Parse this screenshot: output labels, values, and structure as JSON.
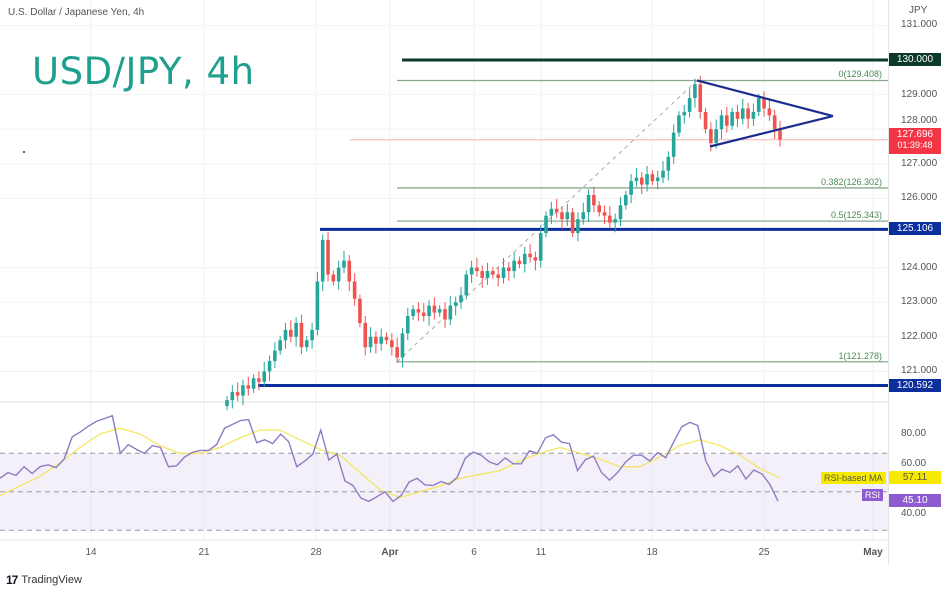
{
  "header": {
    "symbol_title": "U.S. Dollar / Japanese Yen, 4h",
    "overlay_title": "USD/JPY, 4h",
    "currency": "JPY"
  },
  "branding": {
    "logo_mark": "17",
    "logo_text": "TradingView"
  },
  "chart_data": [
    {
      "type": "candlestick",
      "title": "USD/JPY, 4h",
      "ylim": [
        120,
        131.3
      ],
      "y_ticks": [
        "131.000",
        "129.000",
        "128.000",
        "127.000",
        "126.000",
        "124.000",
        "123.000",
        "122.000",
        "121.000"
      ],
      "y_tick_values": [
        131,
        129,
        128,
        127,
        126,
        124,
        123,
        122,
        121
      ],
      "x_ticks": [
        "14",
        "21",
        "28",
        "Apr",
        "6",
        "11",
        "18",
        "25",
        "May"
      ],
      "colors": {
        "up": "#26a69a",
        "down": "#ef5350"
      },
      "first_open": 120.0,
      "closes": [
        120.17,
        120.4,
        120.3,
        120.6,
        120.5,
        120.8,
        120.7,
        121.0,
        121.3,
        121.6,
        121.9,
        122.2,
        122.0,
        122.4,
        121.7,
        121.9,
        122.2,
        123.6,
        124.8,
        123.8,
        123.6,
        124.0,
        124.2,
        123.6,
        123.1,
        122.4,
        121.7,
        122.0,
        121.8,
        122.0,
        121.9,
        121.7,
        121.4,
        122.1,
        122.6,
        122.8,
        122.7,
        122.6,
        122.9,
        122.7,
        122.8,
        122.5,
        122.9,
        123.0,
        123.2,
        123.8,
        124.0,
        123.9,
        123.7,
        123.9,
        123.8,
        123.7,
        124.0,
        123.9,
        124.2,
        124.1,
        124.4,
        124.3,
        124.2,
        125.0,
        125.5,
        125.7,
        125.6,
        125.4,
        125.6,
        125.0,
        125.4,
        125.6,
        126.1,
        125.8,
        125.6,
        125.5,
        125.3,
        125.4,
        125.8,
        126.1,
        126.5,
        126.6,
        126.4,
        126.7,
        126.5,
        126.6,
        126.8,
        127.2,
        127.9,
        128.4,
        128.5,
        128.9,
        129.3,
        128.5,
        128.0,
        127.6,
        128.0,
        128.4,
        128.1,
        128.5,
        128.3,
        128.6,
        128.3,
        128.5,
        128.9,
        128.6,
        128.4,
        128.0,
        127.7
      ],
      "levels": [
        {
          "label": "130.000",
          "value": 130.0,
          "color": "#0b3a2c"
        },
        {
          "label": "125.106",
          "value": 125.106,
          "color": "#0d2f9e"
        },
        {
          "label": "120.592",
          "value": 120.592,
          "color": "#0d2f9e"
        }
      ],
      "fibonacci": [
        {
          "label": "0(129.408)",
          "value": 129.408
        },
        {
          "label": "0.382(126.302)",
          "value": 126.302
        },
        {
          "label": "0.5(125.343)",
          "value": 125.343
        },
        {
          "label": "1(121.278)",
          "value": 121.278
        }
      ],
      "fib_color": "#4a8a52",
      "triangle": {
        "upper_start": 129.408,
        "lower_start": 127.5,
        "apex": 128.38,
        "color": "#1a2d8f"
      },
      "current_price": {
        "value": "127.696",
        "countdown": "01:39:48",
        "price": 127.696,
        "color": "#f23645"
      }
    },
    {
      "type": "line",
      "ylim": [
        20,
        95
      ],
      "y_ticks": [
        "80.00",
        "60.00",
        "40.00"
      ],
      "y_tick_values": [
        80,
        60,
        40
      ],
      "bands": [
        70,
        50,
        30
      ],
      "band_fill": "#7e57c2",
      "series": [
        {
          "name": "RSI",
          "last": "45.10",
          "color": "#8e7cc3",
          "values": [
            57,
            60,
            58.5,
            63,
            59.5,
            63,
            64,
            62.5,
            67,
            78.5,
            81,
            84,
            86.5,
            88,
            89.5,
            70,
            74.5,
            72,
            70,
            74,
            73,
            63,
            63.5,
            68,
            70.5,
            71.5,
            71.5,
            74.5,
            83,
            85,
            87,
            87.5,
            75.5,
            77,
            75,
            80,
            76,
            63,
            66,
            69.5,
            82,
            66.5,
            69.5,
            55.7,
            53.3,
            46.7,
            45,
            47.5,
            50,
            45,
            48,
            55,
            57,
            53.5,
            53.3,
            55.3,
            53.8,
            57.5,
            67.4,
            70.6,
            69,
            65.5,
            64,
            67.6,
            64.5,
            64.5,
            71.3,
            70,
            78,
            79.6,
            75.8,
            75,
            61,
            66.7,
            68.5,
            60,
            56,
            60,
            65.4,
            69,
            69,
            66,
            70.4,
            67.7,
            75.9,
            83.8,
            86,
            84.4,
            66,
            58,
            61.7,
            60,
            63.5,
            56.6,
            61.3,
            59.2,
            53.7,
            45.1
          ]
        },
        {
          "name": "RSI-based MA",
          "last": "57.11",
          "color": "#f5e663",
          "values": [
            48,
            53,
            58,
            65,
            73,
            80,
            83,
            80,
            74,
            70,
            70,
            73,
            78,
            82,
            82,
            77,
            72,
            69,
            60,
            51,
            47,
            50,
            53,
            57,
            59,
            61,
            66,
            70,
            73,
            70,
            67,
            63,
            63,
            68,
            74,
            77,
            74,
            69,
            62,
            57.11
          ]
        }
      ]
    }
  ]
}
